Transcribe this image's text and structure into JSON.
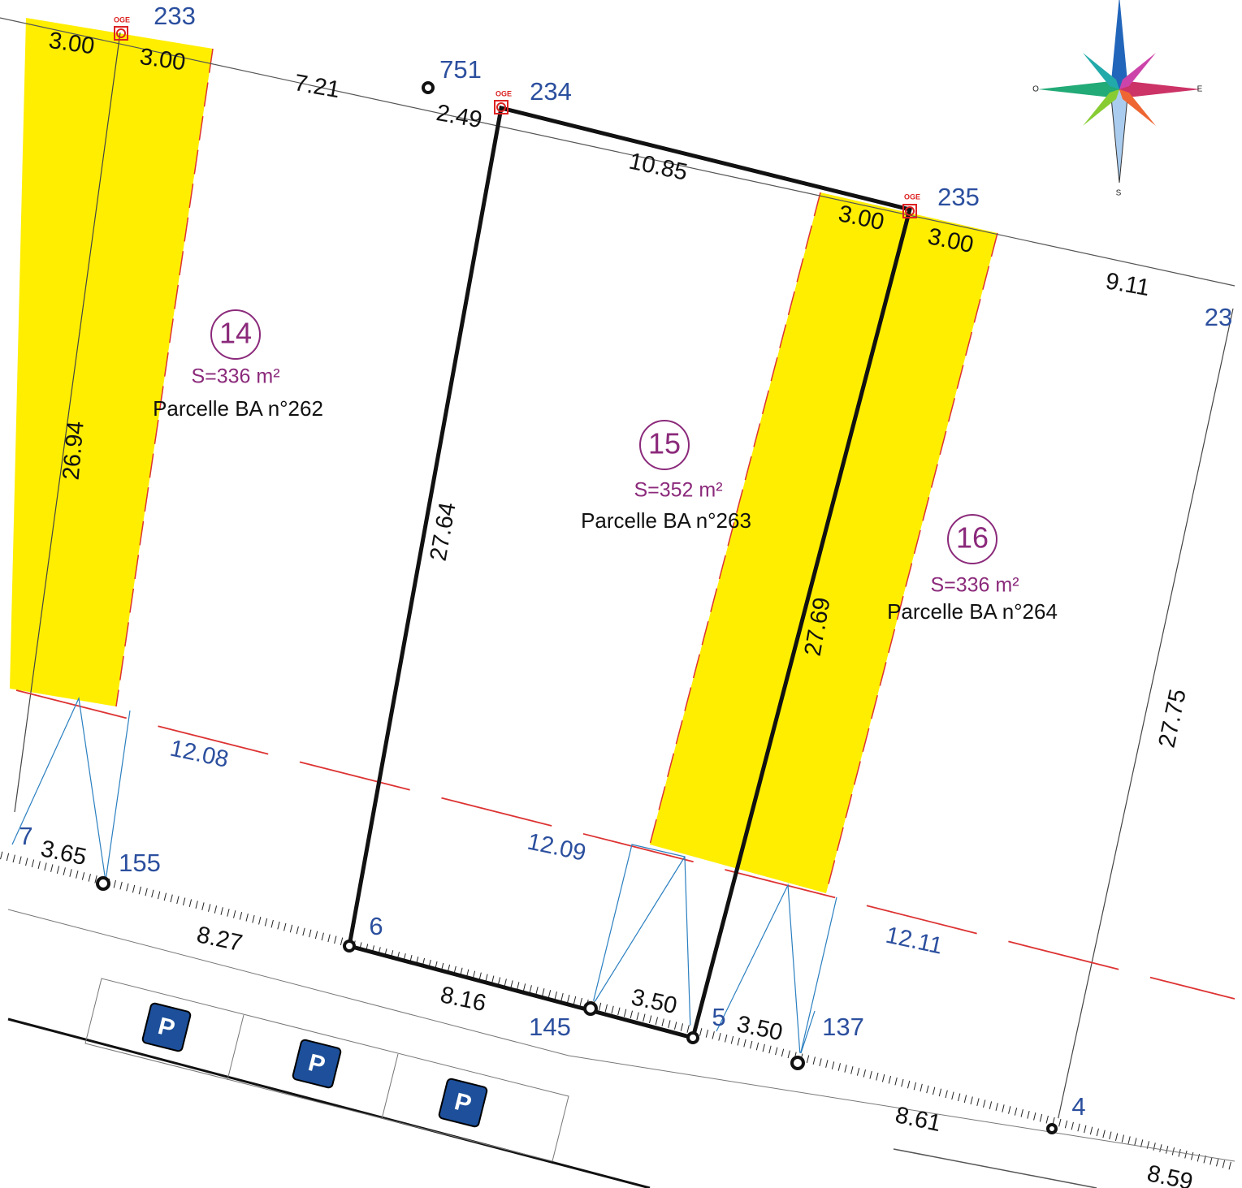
{
  "map": {
    "dimensions": [
      "3.00",
      "3.00",
      "7.21",
      "2.49",
      "10.85",
      "3.00",
      "3.00",
      "9.11",
      "26.94",
      "27.64",
      "27.69",
      "27.75",
      "12.08",
      "12.09",
      "12.11",
      "3.65",
      "8.27",
      "8.16",
      "3.50",
      "3.50",
      "8.61",
      "8.59"
    ],
    "points": [
      "233",
      "751",
      "234",
      "235",
      "23",
      "7",
      "155",
      "6",
      "145",
      "5",
      "137",
      "4"
    ],
    "markers": [
      "OGE",
      "OGE",
      "OGE"
    ],
    "parcels": [
      {
        "number": "14",
        "area": "S=336 m²",
        "name": "Parcelle BA n°262"
      },
      {
        "number": "15",
        "area": "S=352 m²",
        "name": "Parcelle BA n°263"
      },
      {
        "number": "16",
        "area": "S=336 m²",
        "name": "Parcelle BA n°264"
      }
    ],
    "compass": {
      "west": "O",
      "east": "E",
      "south": "S"
    }
  }
}
